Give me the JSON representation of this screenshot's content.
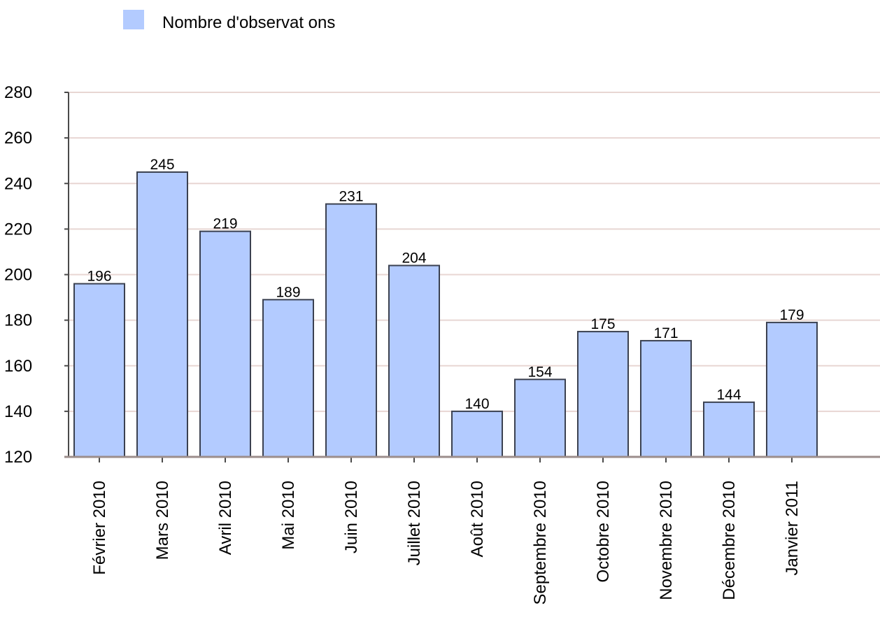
{
  "chart_data": {
    "type": "bar",
    "legend": {
      "position": "top-left",
      "entries": [
        {
          "label": "Nombre d'observat ons",
          "color": "#b3cbff"
        }
      ]
    },
    "categories": [
      "Février 2010",
      "Mars 2010",
      "Avril 2010",
      "Mai 2010",
      "Juin 2010",
      "Juillet 2010",
      "Août 2010",
      "Septembre 2010",
      "Octobre 2010",
      "Novembre 2010",
      "Décembre 2010",
      "Janvier 2011"
    ],
    "series": [
      {
        "name": "Nombre d'observat ons",
        "color": "#b3cbff",
        "values": [
          196,
          245,
          219,
          189,
          231,
          204,
          140,
          154,
          175,
          171,
          144,
          179
        ]
      }
    ],
    "data_labels": [
      "196",
      "245",
      "219",
      "189",
      "231",
      "204",
      "140",
      "154",
      "175",
      "171",
      "144",
      "179"
    ],
    "y_ticks": [
      "120",
      "140",
      "160",
      "180",
      "200",
      "220",
      "240",
      "260",
      "280"
    ],
    "ylim": [
      120,
      280
    ],
    "grid": true,
    "title": "",
    "xlabel": "",
    "ylabel": ""
  }
}
